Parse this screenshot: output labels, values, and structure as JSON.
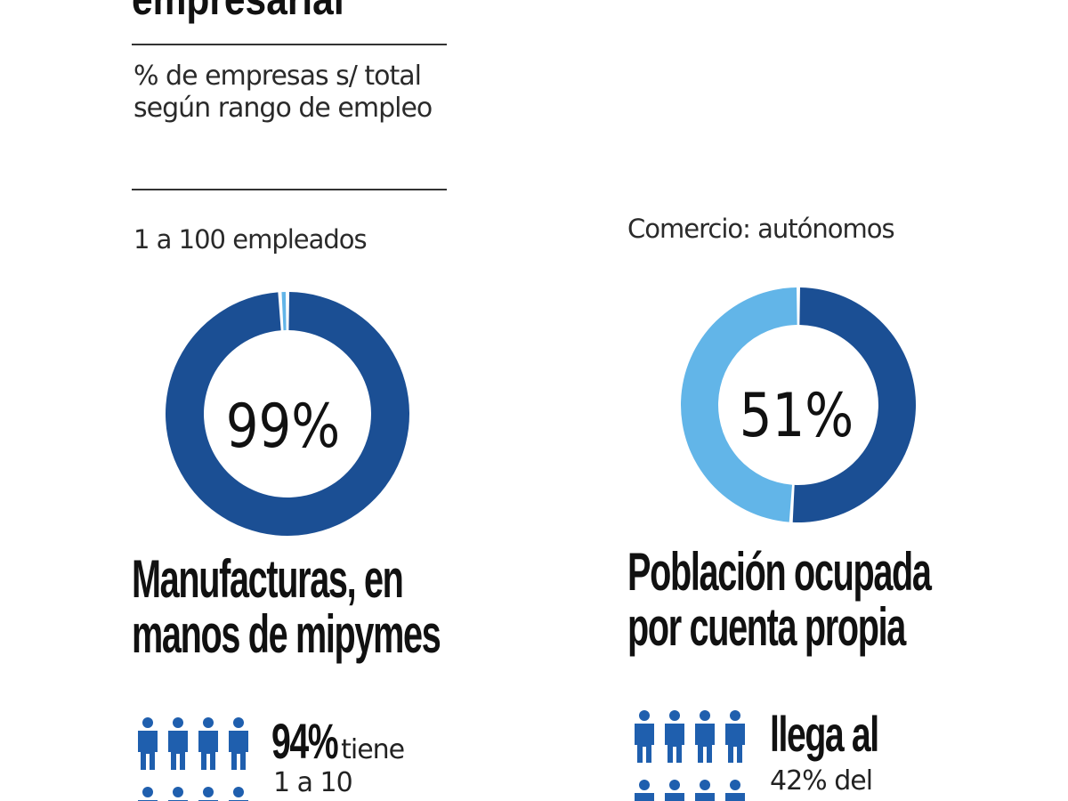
{
  "header": {
    "title": "empresarial",
    "subtitle": "% de empresas  s/ total según rango de empleo"
  },
  "colors": {
    "dark_blue": "#1b4f94",
    "light_blue": "#62b5e8",
    "people_blue": "#1f5fae"
  },
  "chart_data": [
    {
      "type": "pie",
      "style": "donut",
      "label": "1 a 100 empleados",
      "center_label": "99%",
      "slices": [
        {
          "value": 99,
          "color": "#1b4f94"
        },
        {
          "value": 1,
          "color": "#62b5e8"
        }
      ]
    },
    {
      "type": "pie",
      "style": "donut",
      "label": "Comercio: autónomos",
      "center_label": "51%",
      "slices": [
        {
          "value": 51,
          "color": "#1b4f94"
        },
        {
          "value": 49,
          "color": "#62b5e8"
        }
      ]
    }
  ],
  "left": {
    "headline_1": "Manufacturas, en",
    "headline_2": "manos de mipymes",
    "stat_big": "94%",
    "stat_text": "tiene",
    "stat_line2": "1 a 10",
    "icon": "people-icon"
  },
  "right": {
    "headline_1": "Población ocupada",
    "headline_2": "por cuenta propia",
    "stat_big": "llega al",
    "stat_line2": "42% del",
    "icon": "people-icon"
  }
}
